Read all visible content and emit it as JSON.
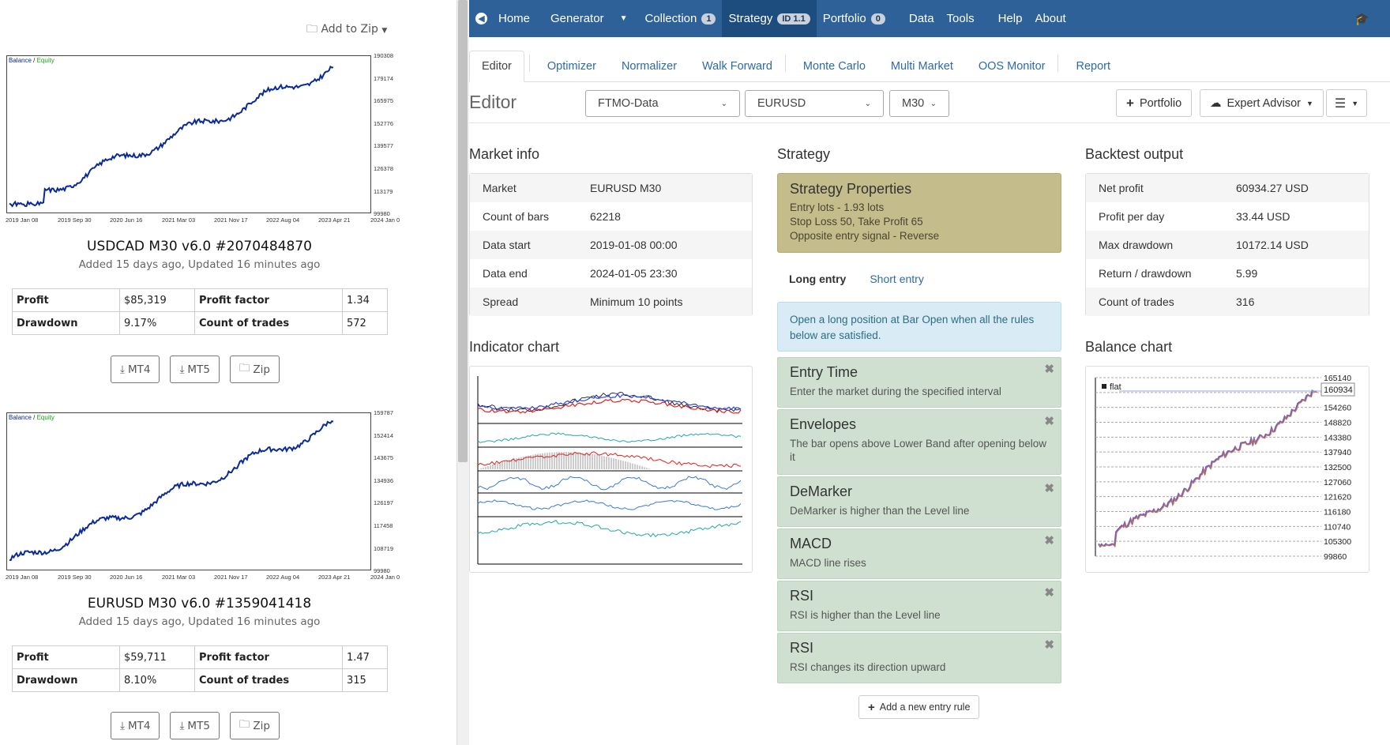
{
  "left": {
    "add_to_zip": "Add to Zip",
    "legend_balance": "Balance",
    "legend_sep": " / ",
    "legend_equity": "Equity",
    "cards": [
      {
        "title": "USDCAD M30 v6.0 #2070484870",
        "subtitle": "Added 15 days ago, Updated 16 minutes ago",
        "yticks": [
          "190308",
          "179174",
          "165975",
          "152776",
          "139577",
          "126378",
          "113179",
          "99980"
        ],
        "xticks": [
          "2019 Jan 08",
          "2019 Sep 30",
          "2020 Jun 16",
          "2021 Mar 03",
          "2021 Nov 17",
          "2022 Aug 04",
          "2023 Apr 21",
          "2024 Jan 0"
        ],
        "stats": {
          "profit_label": "Profit",
          "profit": "$85,319",
          "pf_label": "Profit factor",
          "pf": "1.34",
          "dd_label": "Drawdown",
          "dd": "9.17%",
          "trades_label": "Count of trades",
          "trades": "572"
        }
      },
      {
        "title": "EURUSD M30 v6.0 #1359041418",
        "subtitle": "Added 15 days ago, Updated 16 minutes ago",
        "yticks": [
          "159787",
          "152414",
          "143675",
          "134936",
          "126197",
          "117458",
          "108719",
          "99980"
        ],
        "xticks": [
          "2019 Jan 08",
          "2019 Sep 30",
          "2020 Jun 16",
          "2021 Mar 03",
          "2021 Nov 17",
          "2022 Aug 04",
          "2023 Apr 21",
          "2024 Jan 0"
        ],
        "stats": {
          "profit_label": "Profit",
          "profit": "$59,711",
          "pf_label": "Profit factor",
          "pf": "1.47",
          "dd_label": "Drawdown",
          "dd": "8.10%",
          "trades_label": "Count of trades",
          "trades": "315"
        }
      }
    ],
    "downloads": [
      "MT4",
      "MT5",
      "Zip"
    ]
  },
  "nav": {
    "home": "Home",
    "generator": "Generator",
    "collection": "Collection",
    "collection_count": "1",
    "strategy": "Strategy",
    "strategy_badge": "ID 1.1",
    "portfolio": "Portfolio",
    "portfolio_count": "0",
    "data": "Data",
    "tools": "Tools",
    "help": "Help",
    "about": "About"
  },
  "tabs": [
    "Editor",
    "Optimizer",
    "Normalizer",
    "Walk Forward",
    "Monte Carlo",
    "Multi Market",
    "OOS Monitor",
    "Report"
  ],
  "toolbar": {
    "title": "Editor",
    "data_source": "FTMO-Data",
    "symbol": "EURUSD",
    "period": "M30",
    "portfolio": "Portfolio",
    "expert": "Expert Advisor"
  },
  "market_info": {
    "heading": "Market info",
    "rows": [
      {
        "k": "Market",
        "v": "EURUSD M30"
      },
      {
        "k": "Count of bars",
        "v": "62218"
      },
      {
        "k": "Data start",
        "v": "2019-01-08 00:00"
      },
      {
        "k": "Data end",
        "v": "2024-01-05 23:30"
      },
      {
        "k": "Spread",
        "v": "Minimum 10 points"
      }
    ]
  },
  "indicator_chart": {
    "heading": "Indicator chart"
  },
  "strategy": {
    "heading": "Strategy",
    "props_title": "Strategy Properties",
    "props": [
      "Entry lots - 1.93 lots",
      "Stop Loss 50, Take Profit 65",
      "Opposite entry signal - Reverse"
    ],
    "long_tab": "Long entry",
    "short_tab": "Short entry",
    "info": "Open a long position at Bar Open when all the rules below are satisfied.",
    "rules": [
      {
        "t": "Entry Time",
        "d": "Enter the market during the specified interval"
      },
      {
        "t": "Envelopes",
        "d": "The bar opens above Lower Band after opening below it"
      },
      {
        "t": "DeMarker",
        "d": "DeMarker is higher than the Level line"
      },
      {
        "t": "MACD",
        "d": "MACD line rises"
      },
      {
        "t": "RSI",
        "d": "RSI is higher than the Level line"
      },
      {
        "t": "RSI",
        "d": "RSI changes its direction upward"
      }
    ],
    "add_rule": "Add a new entry rule"
  },
  "backtest": {
    "heading": "Backtest output",
    "rows": [
      {
        "k": "Net profit",
        "v": "60934.27 USD"
      },
      {
        "k": "Profit per day",
        "v": "33.44 USD"
      },
      {
        "k": "Max drawdown",
        "v": "10172.14 USD"
      },
      {
        "k": "Return / drawdown",
        "v": "5.99"
      },
      {
        "k": "Count of trades",
        "v": "316"
      }
    ]
  },
  "balance_chart": {
    "heading": "Balance chart",
    "legend": "flat",
    "marker": "160934",
    "yticks": [
      "165140",
      "160934",
      "154260",
      "148820",
      "143380",
      "137940",
      "132500",
      "127060",
      "121620",
      "116180",
      "110740",
      "105300",
      "99860"
    ]
  },
  "colors": {
    "nav": "#2d6198",
    "props": "#c5bc8c",
    "rule": "#cfe0d0",
    "info": "#d9ecf5",
    "balance_line": "#0a2a9a",
    "equity_line": "#17a517"
  }
}
